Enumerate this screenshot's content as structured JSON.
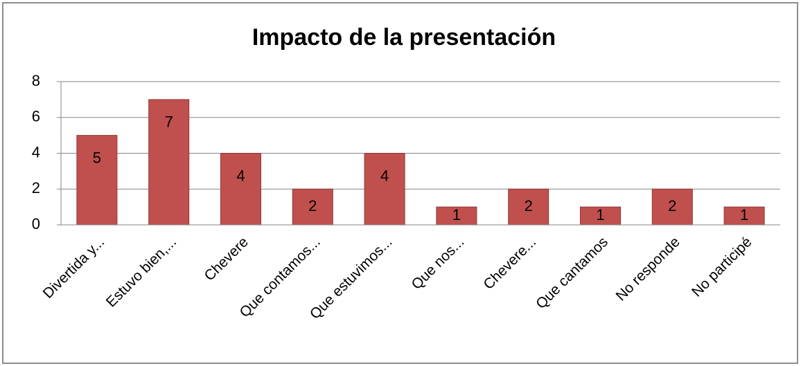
{
  "chart_data": {
    "type": "bar",
    "title": "Impacto de la presentación",
    "categories": [
      "Divertida y...",
      "Estuvo bien,...",
      "Chevere",
      "Que contamos...",
      "Que estuvimos...",
      "Que nos...",
      "Chevere...",
      "Que cantamos",
      "No responde",
      "No participé"
    ],
    "values": [
      5,
      7,
      4,
      2,
      4,
      1,
      2,
      1,
      2,
      1
    ],
    "color": "#c0504d",
    "ylim": [
      0,
      8
    ],
    "yticks": [
      0,
      2,
      4,
      6,
      8
    ],
    "grid": true
  }
}
